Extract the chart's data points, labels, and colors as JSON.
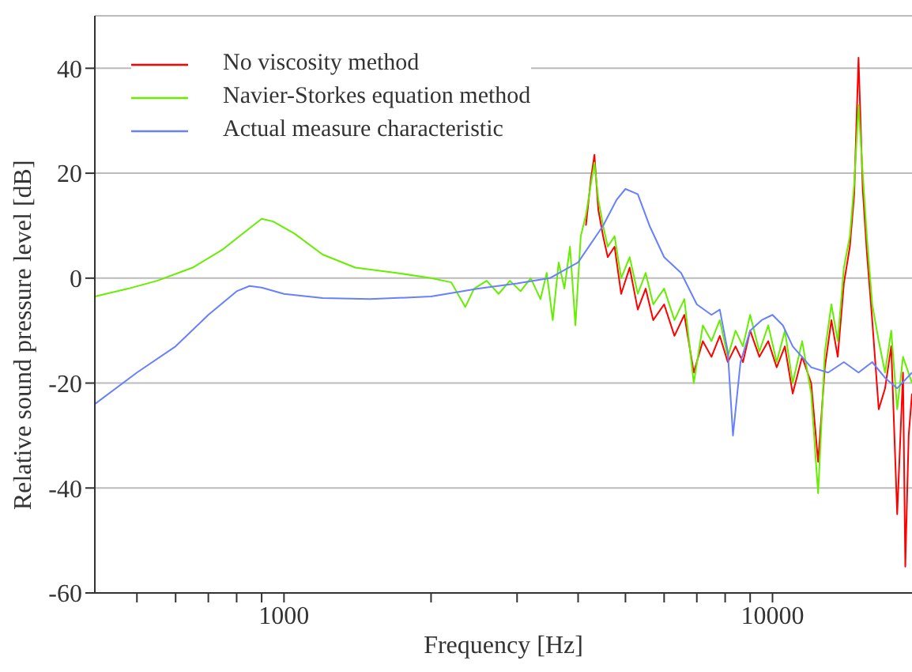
{
  "chart_data": {
    "type": "line",
    "xlabel": "Frequency [Hz]",
    "ylabel": "Relative sound pressure level [dB]",
    "log": "x",
    "xlim": [
      410,
      19300
    ],
    "ylim": [
      -60,
      50
    ],
    "xticks": [
      {
        "value": 500,
        "label": null
      },
      {
        "value": 600,
        "label": null
      },
      {
        "value": 700,
        "label": null
      },
      {
        "value": 800,
        "label": null
      },
      {
        "value": 900,
        "label": null
      },
      1000,
      {
        "value": 2000,
        "label": null
      },
      {
        "value": 3000,
        "label": null
      },
      {
        "value": 4000,
        "label": null
      },
      {
        "value": 5000,
        "label": null
      },
      {
        "value": 6000,
        "label": null
      },
      {
        "value": 7000,
        "label": null
      },
      {
        "value": 8000,
        "label": null
      },
      {
        "value": 9000,
        "label": null
      },
      10000
    ],
    "yticks": [
      -60,
      -40,
      -20,
      0,
      20,
      40
    ],
    "grid": "y",
    "legend": "top left",
    "marker": "none",
    "line_style": "solid",
    "series": [
      {
        "name": "No viscosity method",
        "color": "#ff0000",
        "x": [
          4150,
          4250,
          4320,
          4400,
          4500,
          4600,
          4750,
          4900,
          5100,
          5300,
          5500,
          5700,
          6000,
          6300,
          6600,
          6900,
          7200,
          7500,
          7800,
          8100,
          8400,
          8700,
          9000,
          9400,
          9800,
          10200,
          10600,
          11000,
          11500,
          12000,
          12400,
          12800,
          13200,
          13600,
          14000,
          14400,
          14700,
          15000,
          15300,
          15600,
          16000,
          16500,
          17000,
          17500,
          18000,
          18500,
          18700,
          19000,
          19300
        ],
        "values": [
          10,
          19,
          23.5,
          13,
          8,
          4,
          6,
          -3,
          2,
          -6,
          -2,
          -8,
          -5,
          -11,
          -7,
          -18,
          -12,
          -15,
          -11,
          -16,
          -13,
          -16,
          -10,
          -15,
          -12,
          -17,
          -13,
          -22,
          -15,
          -20,
          -35,
          -17,
          -8,
          -15,
          -1,
          6,
          16,
          42,
          17,
          5,
          -8,
          -25,
          -21,
          -13,
          -45,
          -18,
          -55,
          -30,
          -22
        ]
      },
      {
        "name": "Navier-Storkes equation method",
        "color": "#66ee00",
        "x": [
          410,
          480,
          550,
          650,
          750,
          850,
          900,
          950,
          1050,
          1200,
          1400,
          1700,
          2000,
          2200,
          2350,
          2450,
          2600,
          2750,
          2900,
          3050,
          3200,
          3350,
          3450,
          3550,
          3650,
          3750,
          3850,
          3950,
          4050,
          4150,
          4250,
          4320,
          4400,
          4500,
          4600,
          4750,
          4900,
          5100,
          5300,
          5500,
          5700,
          6000,
          6300,
          6600,
          6900,
          7200,
          7500,
          7800,
          8100,
          8400,
          8700,
          9000,
          9400,
          9800,
          10200,
          10600,
          11000,
          11500,
          12000,
          12400,
          12800,
          13200,
          13600,
          14000,
          14400,
          14700,
          15000,
          15300,
          15600,
          16000,
          16500,
          17000,
          17500,
          18000,
          18500,
          19300
        ],
        "values": [
          -3.5,
          -2,
          -0.5,
          2,
          5.5,
          9.5,
          11.3,
          10.8,
          8.5,
          4.5,
          2,
          1,
          0,
          -0.8,
          -5.5,
          -2,
          -0.5,
          -3,
          -0.5,
          -2.5,
          0,
          -4,
          1,
          -8,
          3,
          -2,
          6,
          -9,
          8,
          12,
          18,
          22,
          15,
          10,
          6,
          8,
          0,
          4,
          -3,
          1,
          -5,
          -2,
          -8,
          -4,
          -20,
          -9,
          -12,
          -8,
          -15,
          -10,
          -13,
          -7,
          -14,
          -9,
          -16,
          -10,
          -20,
          -12,
          -22,
          -41,
          -14,
          -5,
          -12,
          2,
          8,
          18,
          33,
          20,
          8,
          -5,
          -12,
          -18,
          -10,
          -25,
          -15,
          -20
        ]
      },
      {
        "name": "Actual measure characteristic",
        "color": "#6680ff",
        "x": [
          410,
          500,
          600,
          700,
          800,
          850,
          900,
          1000,
          1200,
          1500,
          2000,
          2500,
          3000,
          3500,
          4000,
          4500,
          4800,
          5000,
          5300,
          5600,
          6000,
          6500,
          7000,
          7500,
          7800,
          8100,
          8300,
          8600,
          9000,
          9500,
          10000,
          10500,
          11000,
          12000,
          13000,
          14000,
          15000,
          16000,
          17000,
          18000,
          19300
        ],
        "values": [
          -24,
          -18,
          -13,
          -7,
          -2.5,
          -1.5,
          -1.8,
          -3,
          -3.8,
          -4,
          -3.5,
          -2,
          -1,
          0,
          3,
          10,
          15,
          17,
          16,
          10,
          4,
          1,
          -5,
          -7,
          -6,
          -14,
          -30,
          -16,
          -10,
          -8,
          -7,
          -9,
          -13,
          -17,
          -18,
          -16,
          -18,
          -16,
          -19,
          -21,
          -18
        ]
      }
    ]
  }
}
